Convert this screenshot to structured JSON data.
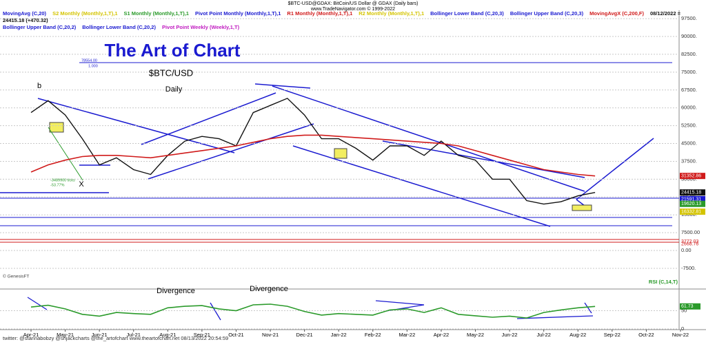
{
  "header": {
    "title": "$BTC-USD@GDAX: BitCoin/US Dollar @ GDAX (Daily bars)",
    "source": "www.TradeNavigator.com © 1999-2022",
    "quote": "08/12/2022 = 24415.18 (+470.32)",
    "indicators": [
      {
        "text": "MovingAvg (C,20)",
        "color": "#1a1ad0"
      },
      {
        "text": "S2 Monthly (Monthly,1,T),1",
        "color": "#d4c400"
      },
      {
        "text": "S1 Monthly (Monthly,1,T),1",
        "color": "#2a9a2a"
      },
      {
        "text": "Pivot Point Monthly (Monthly,1,T),1",
        "color": "#1a1ad0"
      },
      {
        "text": "R1 Monthly (Monthly,1,T),1",
        "color": "#d01a1a"
      },
      {
        "text": "R2 Monthly (Monthly,1,T),1",
        "color": "#d4c400"
      },
      {
        "text": "Bollinger Lower Band (C,20,3)",
        "color": "#1a1ad0"
      },
      {
        "text": "Bollinger Upper Band (C,20,3)",
        "color": "#1a1ad0"
      },
      {
        "text": "MovingAvgX (C,200,F)",
        "color": "#d01a1a"
      },
      {
        "text": "Bollinger Upper Band (C,20,2)",
        "color": "#1a1ad0"
      },
      {
        "text": "Bollinger Lower Band (C,20,2)",
        "color": "#1a1ad0"
      },
      {
        "text": "Pivot Point Weekly (Weekly,1,T)",
        "color": "#c01ac0"
      }
    ]
  },
  "footer": "twitter: @stannabobzy @shjackcharts @the_artofchart  www.theartofchart.net  08/13/2022 20:54:59",
  "chart_data": [
    {
      "type": "line",
      "title": "The Art of Chart",
      "subtitle": "$BTC/USD",
      "period": "Daily",
      "categories": [
        "Apr-21",
        null,
        "May-21",
        null,
        "Jun-21",
        null,
        "Jul-21",
        null,
        "Aug-21",
        null,
        "Sep-21",
        null,
        "Oct-21",
        null,
        "Nov-21",
        null,
        "Dec-21",
        null,
        "Jan-22",
        null,
        "Feb-22",
        null,
        "Mar-22",
        null,
        "Apr-22",
        null,
        "May-22",
        null,
        "Jun-22",
        null,
        "Jul-22",
        null,
        "Aug-22",
        null,
        "Sep-22",
        null,
        "Oct-22",
        null,
        "Nov-22"
      ],
      "series": [
        {
          "color": "#111111",
          "values": [
            58000,
            63000,
            57000,
            47000,
            36000,
            39000,
            34000,
            32000,
            40000,
            46000,
            48000,
            47000,
            44000,
            58000,
            61000,
            64000,
            57000,
            47000,
            47000,
            43000,
            38000,
            44000,
            44000,
            40000,
            46000,
            40000,
            38000,
            30000,
            30000,
            21000,
            19500,
            20500,
            23000,
            24400,
            null,
            null,
            null,
            null,
            null
          ]
        },
        {
          "name": "MovingAvgX (C,200,F)",
          "color": "#d01a1a",
          "values": [
            33000,
            36000,
            38000,
            39500,
            40000,
            40000,
            39500,
            39000,
            40000,
            41000,
            42000,
            43000,
            44000,
            45500,
            47000,
            48000,
            48500,
            48500,
            48000,
            47500,
            47000,
            46500,
            46000,
            45500,
            45000,
            44000,
            42000,
            40000,
            38000,
            36000,
            34000,
            33000,
            32000,
            31352,
            null,
            null,
            null,
            null,
            null
          ]
        }
      ],
      "ylim": [
        -13300,
        101000
      ],
      "yticks": [
        {
          "value": 97500,
          "label": "97500."
        },
        {
          "value": 90000,
          "label": "90000."
        },
        {
          "value": 82500,
          "label": "82500."
        },
        {
          "value": 75000,
          "label": "75000."
        },
        {
          "value": 67500,
          "label": "67500."
        },
        {
          "value": 60000,
          "label": "60000."
        },
        {
          "value": 52500,
          "label": "52500."
        },
        {
          "value": 45000,
          "label": "45000."
        },
        {
          "value": 37500,
          "label": "37500."
        },
        {
          "value": 30000,
          "label": "30000."
        },
        {
          "value": 22500,
          "label": "22500."
        },
        {
          "value": 15000,
          "label": "15000."
        },
        {
          "value": 7500,
          "label": "7500.00"
        },
        {
          "value": 0,
          "label": "0.00"
        },
        {
          "value": -7500,
          "label": "-7500."
        }
      ],
      "price_labels": [
        {
          "value": 31352.86,
          "label": "31352.86",
          "color": "#d01a1a"
        },
        {
          "value": 24415.18,
          "label": "24415.18",
          "color": "#111111"
        },
        {
          "value": 21591.31,
          "label": "21591.31",
          "color": "#1a1ad0"
        },
        {
          "value": 19620.13,
          "label": "19620.13",
          "color": "#2a9a2a"
        },
        {
          "value": 16332.81,
          "label": "16332.81",
          "color": "#d4c400"
        },
        {
          "value": 3772.03,
          "label": "3772.03",
          "color": "#d01a1a"
        },
        {
          "value": 2668.76,
          "label": "2668.76",
          "color": "#d01a1a"
        }
      ],
      "annotations": {
        "wave": "b",
        "x_mark": "X",
        "ticks": "-3489900 ticks",
        "percent": "-53.77%",
        "level": "78554.00",
        "ratio": "1.000",
        "credit": "© GenesisFT"
      }
    },
    {
      "type": "line",
      "title": "RSI (C,14,T)",
      "series": [
        {
          "color": "#2a9a2a",
          "values": [
            60,
            65,
            55,
            40,
            35,
            45,
            42,
            40,
            58,
            62,
            64,
            55,
            50,
            66,
            68,
            62,
            48,
            38,
            42,
            40,
            38,
            52,
            55,
            45,
            58,
            40,
            36,
            32,
            35,
            30,
            45,
            52,
            58,
            61.73,
            null,
            null,
            null,
            null,
            null
          ]
        }
      ],
      "ylim": [
        0,
        100
      ],
      "yticks": [
        0,
        50
      ],
      "current": {
        "value": 61.73,
        "label": "61.73"
      },
      "annotations": [
        "Divergence",
        "Divergence"
      ]
    }
  ]
}
